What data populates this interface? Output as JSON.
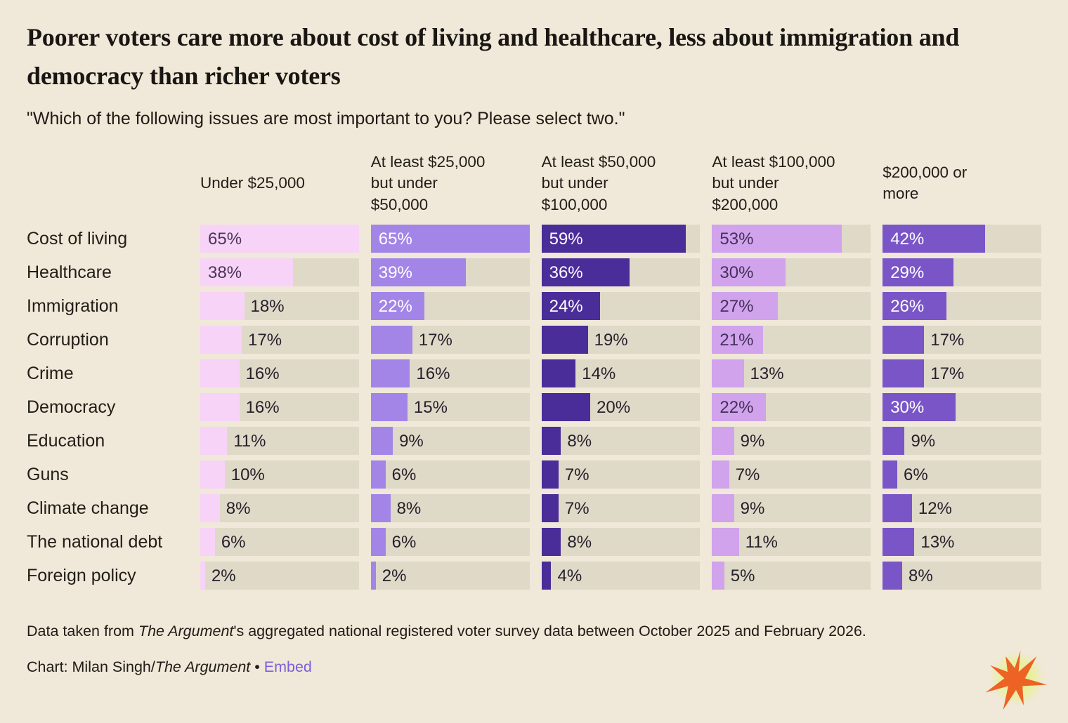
{
  "title": "Poorer voters care more about cost of living and healthcare, less about immigration and democracy than richer voters",
  "subtitle": "\"Which of the following issues are most important to you? Please select two.\"",
  "chart_data": {
    "type": "bar",
    "orientation": "horizontal",
    "unit": "%",
    "xlim": [
      0,
      65
    ],
    "grid": false,
    "legend": "column headers above each bar column",
    "column_headers": [
      "Under $25,000",
      "At least $25,000\nbut under\n$50,000",
      "At least $50,000\nbut under\n$100,000",
      "At least $100,000\nbut under\n$200,000",
      "$200,000 or\nmore"
    ],
    "rows": [
      "Cost of living",
      "Healthcare",
      "Immigration",
      "Corruption",
      "Crime",
      "Democracy",
      "Education",
      "Guns",
      "Climate change",
      "The national debt",
      "Foreign policy"
    ],
    "series": [
      {
        "name": "Under $25,000",
        "values": [
          65,
          38,
          18,
          17,
          16,
          16,
          11,
          10,
          8,
          6,
          2
        ]
      },
      {
        "name": "At least $25,000 but under $50,000",
        "values": [
          65,
          39,
          22,
          17,
          16,
          15,
          9,
          6,
          8,
          6,
          2
        ]
      },
      {
        "name": "At least $50,000 but under $100,000",
        "values": [
          59,
          36,
          24,
          19,
          14,
          20,
          8,
          7,
          7,
          8,
          4
        ]
      },
      {
        "name": "At least $100,000 but under $200,000",
        "values": [
          53,
          30,
          27,
          21,
          13,
          22,
          9,
          7,
          9,
          11,
          5
        ]
      },
      {
        "name": "$200,000 or more",
        "values": [
          42,
          29,
          26,
          17,
          17,
          30,
          9,
          6,
          12,
          13,
          8
        ]
      }
    ]
  },
  "colors": {
    "background": "#F0E8D8",
    "track": "#DFD9C8",
    "bars": [
      "#F7D4F7",
      "#A385E8",
      "#4B2D99",
      "#D0A3EC",
      "#7A55C7"
    ],
    "inside_text": [
      "#4A3458",
      "#FFFFFF",
      "#FFFFFF",
      "#44305A",
      "#FFFFFF"
    ],
    "outside_text": "#26202B",
    "link": "#7E5FD9",
    "logo_star": "#EC6325",
    "logo_glow": "#E6F37D"
  },
  "footer": {
    "note_prefix": "Data taken from ",
    "note_source": "The Argument",
    "note_suffix": "'s aggregated national registered voter survey data between October 2025 and February 2026.",
    "credit_prefix": "Chart: Milan Singh/",
    "credit_source": "The Argument",
    "credit_separator": " • ",
    "credit_link": "Embed"
  }
}
